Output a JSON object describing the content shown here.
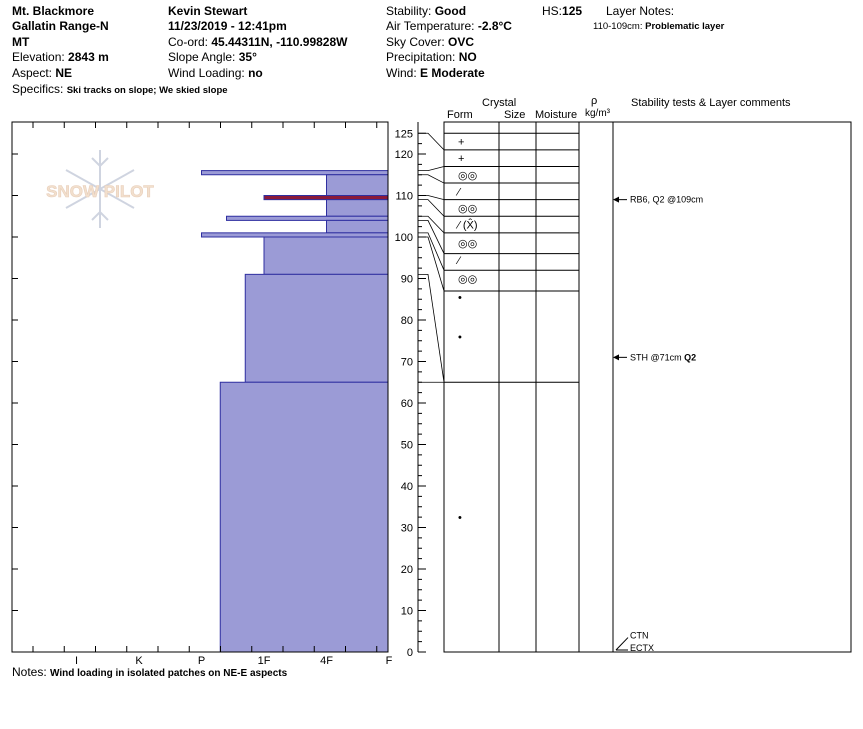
{
  "header": {
    "location": "Mt. Blackmore",
    "range": "Gallatin Range-N",
    "state": "MT",
    "elevation_label": "Elevation:",
    "elevation": "2843 m",
    "aspect_label": "Aspect:",
    "aspect": "NE",
    "specifics_label": "Specifics:",
    "specifics": "Ski tracks on slope; We skied slope",
    "observer": "Kevin Stewart",
    "datetime": "11/23/2019 - 12:41pm",
    "coord_label": "Co-ord:",
    "coord": "45.44311N, -110.99828W",
    "slope_label": "Slope Angle:",
    "slope": "35°",
    "wind_loading_label": "Wind Loading:",
    "wind_loading": "no",
    "stability_label": "Stability:",
    "stability": "Good",
    "air_temp_label": "Air Temperature:",
    "air_temp": "-2.8°C",
    "sky_label": "Sky Cover:",
    "sky": "OVC",
    "precip_label": "Precipitation:",
    "precip": "NO",
    "wind_label": "Wind:",
    "wind": "E Moderate",
    "hs_label": "HS:",
    "hs": "125",
    "layer_notes_label": "Layer Notes:",
    "layer_note_range": "110-109cm:",
    "layer_note_text": "Problematic layer"
  },
  "watermark": {
    "text": "SNOW PILOT"
  },
  "columns": {
    "crystal": "Crystal",
    "form": "Form",
    "size": "Size",
    "moisture": "Moisture",
    "rho": "ρ",
    "density_unit": "kg/m³",
    "comments": "Stability tests & Layer comments"
  },
  "notes": {
    "label": "Notes:",
    "text": "Wind loading in isolated patches on NE-E aspects"
  },
  "colors": {
    "fill": "#9b9bd6",
    "stroke": "#2f2fa0",
    "critical": "#8b1a3a"
  },
  "chart_data": {
    "type": "bar",
    "orientation": "horizontal",
    "xlabel": "",
    "ylabel": "",
    "x_categories": [
      "I",
      "K",
      "P",
      "1F",
      "4F",
      "F"
    ],
    "y_ticks": [
      0,
      10,
      20,
      30,
      40,
      50,
      60,
      70,
      80,
      90,
      100,
      110,
      120,
      125
    ],
    "ylim": [
      0,
      125
    ],
    "hardness_scale": "F=1, 4F=2, 1F=3, P=4, K=5, I=6",
    "hardness_layers": [
      {
        "top": 125,
        "bottom": 116,
        "hardness": 1.0
      },
      {
        "top": 116,
        "bottom": 115,
        "hardness": 4.0
      },
      {
        "top": 115,
        "bottom": 110,
        "hardness": 2.0
      },
      {
        "top": 110,
        "bottom": 109,
        "hardness": 3.0,
        "critical": true
      },
      {
        "top": 109,
        "bottom": 105,
        "hardness": 2.0
      },
      {
        "top": 105,
        "bottom": 104,
        "hardness": 3.6
      },
      {
        "top": 104,
        "bottom": 101,
        "hardness": 2.0
      },
      {
        "top": 101,
        "bottom": 100,
        "hardness": 4.0
      },
      {
        "top": 100,
        "bottom": 91,
        "hardness": 3.0
      },
      {
        "top": 91,
        "bottom": 65,
        "hardness": 3.3
      },
      {
        "top": 65,
        "bottom": 0,
        "hardness": 3.7
      }
    ],
    "layer_boundaries": [
      125,
      121,
      117,
      113,
      109,
      105,
      101,
      96,
      92,
      87,
      65,
      0
    ],
    "form_symbols": [
      {
        "depth": 123,
        "symbol": "+"
      },
      {
        "depth": 119,
        "symbol": "+"
      },
      {
        "depth": 115,
        "symbol": "◎◎"
      },
      {
        "depth": 111,
        "symbol": "⁄"
      },
      {
        "depth": 107,
        "symbol": "◎◎"
      },
      {
        "depth": 103,
        "symbol": "⁄ (X̂)"
      },
      {
        "depth": 98.5,
        "symbol": "◎◎"
      },
      {
        "depth": 94.5,
        "symbol": "⁄"
      },
      {
        "depth": 90,
        "symbol": "◎◎"
      },
      {
        "depth": 85.5,
        "symbol": "•"
      },
      {
        "depth": 76,
        "symbol": "•"
      },
      {
        "depth": 32.5,
        "symbol": "•"
      }
    ],
    "stability_tests": [
      {
        "depth": 109,
        "label": "RB6, Q2 @109cm"
      },
      {
        "depth": 71,
        "label": "STH @71cm",
        "quality": "Q2"
      },
      {
        "depth": 3,
        "label": "CTN"
      },
      {
        "depth": 0,
        "label": "ECTX"
      }
    ]
  }
}
